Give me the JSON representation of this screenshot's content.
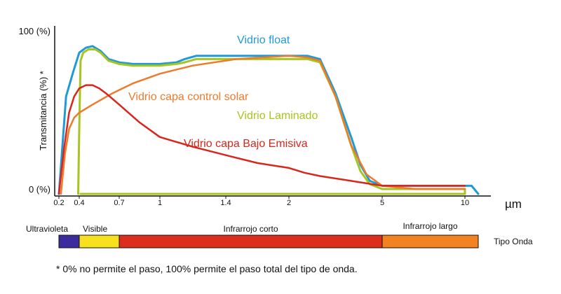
{
  "chart_data": {
    "type": "line",
    "title": "",
    "xlabel": "",
    "ylabel": "Transmitancia (%) *",
    "x_unit": "µm",
    "y_tick_labels": [
      "0 (%)",
      "100 (%)"
    ],
    "ylim": [
      0,
      100
    ],
    "x_ticks": [
      {
        "value": 0.2,
        "label": "0.2"
      },
      {
        "value": 0.4,
        "label": "0.4"
      },
      {
        "value": 0.7,
        "label": "0.7"
      },
      {
        "value": 1,
        "label": "1"
      },
      {
        "value": 1.4,
        "label": "1.4"
      },
      {
        "value": 2,
        "label": "2"
      },
      {
        "value": 5,
        "label": "5"
      },
      {
        "value": 10,
        "label": "10"
      }
    ],
    "grid": false,
    "legend": "inline labels",
    "series": [
      {
        "name": "Vidrio float",
        "color": "#1f9ad6",
        "x": [
          0.2,
          0.27,
          0.34,
          0.4,
          0.45,
          0.5,
          0.56,
          0.62,
          0.7,
          0.8,
          1.0,
          1.1,
          1.15,
          1.22,
          1.5,
          2.0,
          2.6,
          3.0,
          3.5,
          4.0,
          4.3,
          4.6,
          5.0,
          7.0,
          10.0,
          10.1,
          10.2
        ],
        "y": [
          0,
          60,
          75,
          87,
          90,
          91,
          88,
          83,
          81,
          80,
          80,
          81,
          83,
          85,
          85,
          85,
          85,
          83,
          62,
          35,
          18,
          8,
          5,
          5,
          5,
          5,
          0
        ]
      },
      {
        "name": "Vidrio Laminado",
        "color": "#a6c520",
        "x": [
          0.39,
          0.4,
          0.41,
          0.43,
          0.47,
          0.52,
          0.56,
          0.62,
          0.7,
          0.8,
          1.0,
          1.1,
          1.15,
          1.22,
          1.5,
          2.0,
          2.6,
          3.0,
          3.5,
          4.0,
          4.3,
          4.6,
          5.0,
          7.0,
          10.0,
          10.0,
          7.0,
          0.41
        ],
        "y": [
          0,
          40,
          82,
          87,
          89,
          89,
          87,
          82,
          80,
          79,
          79,
          80,
          81,
          83,
          83,
          83,
          83,
          81,
          60,
          30,
          14,
          6,
          3,
          3,
          3,
          0,
          0,
          0
        ]
      },
      {
        "name": "Vidrio capa control solar",
        "color": "#f07a2a",
        "x": [
          0.22,
          0.26,
          0.3,
          0.35,
          0.4,
          0.5,
          0.65,
          0.8,
          1.0,
          1.2,
          1.5,
          2.0,
          2.6,
          3.0,
          3.5,
          4.0,
          4.5,
          5.0,
          7.0,
          10.0
        ],
        "y": [
          0,
          25,
          40,
          47,
          50,
          55,
          62,
          68,
          74,
          79,
          83,
          85,
          84,
          82,
          60,
          30,
          12,
          5,
          3,
          3
        ]
      },
      {
        "name": "Vidrio capa Bajo Emisiva",
        "color": "#d9261c",
        "x": [
          0.2,
          0.25,
          0.3,
          0.35,
          0.4,
          0.45,
          0.5,
          0.55,
          0.6,
          0.7,
          0.85,
          1.0,
          1.2,
          1.45,
          1.7,
          2.0,
          2.5,
          3.0,
          4.0,
          5.0,
          7.0,
          10.0
        ],
        "y": [
          0,
          28,
          50,
          60,
          65,
          67,
          67,
          65,
          62,
          55,
          44,
          35,
          29,
          23,
          19,
          16,
          13,
          11,
          8,
          5,
          5,
          5
        ]
      }
    ],
    "spectrum_bands": [
      {
        "name": "Ultravioleta",
        "color": "#3b2b9c",
        "from": 0.2,
        "to": 0.4
      },
      {
        "name": "Visible",
        "color": "#f7e11e",
        "from": 0.4,
        "to": 0.7
      },
      {
        "name": "Infrarrojo corto",
        "color": "#dd2e1d",
        "from": 0.7,
        "to": 5
      },
      {
        "name": "Infrarrojo largo",
        "color": "#f28320",
        "from": 5,
        "to": 10.2
      }
    ],
    "spectrum_caption": "Tipo Onda",
    "footnote": "* 0% no permite el paso, 100% permite el paso total del tipo de onda."
  }
}
